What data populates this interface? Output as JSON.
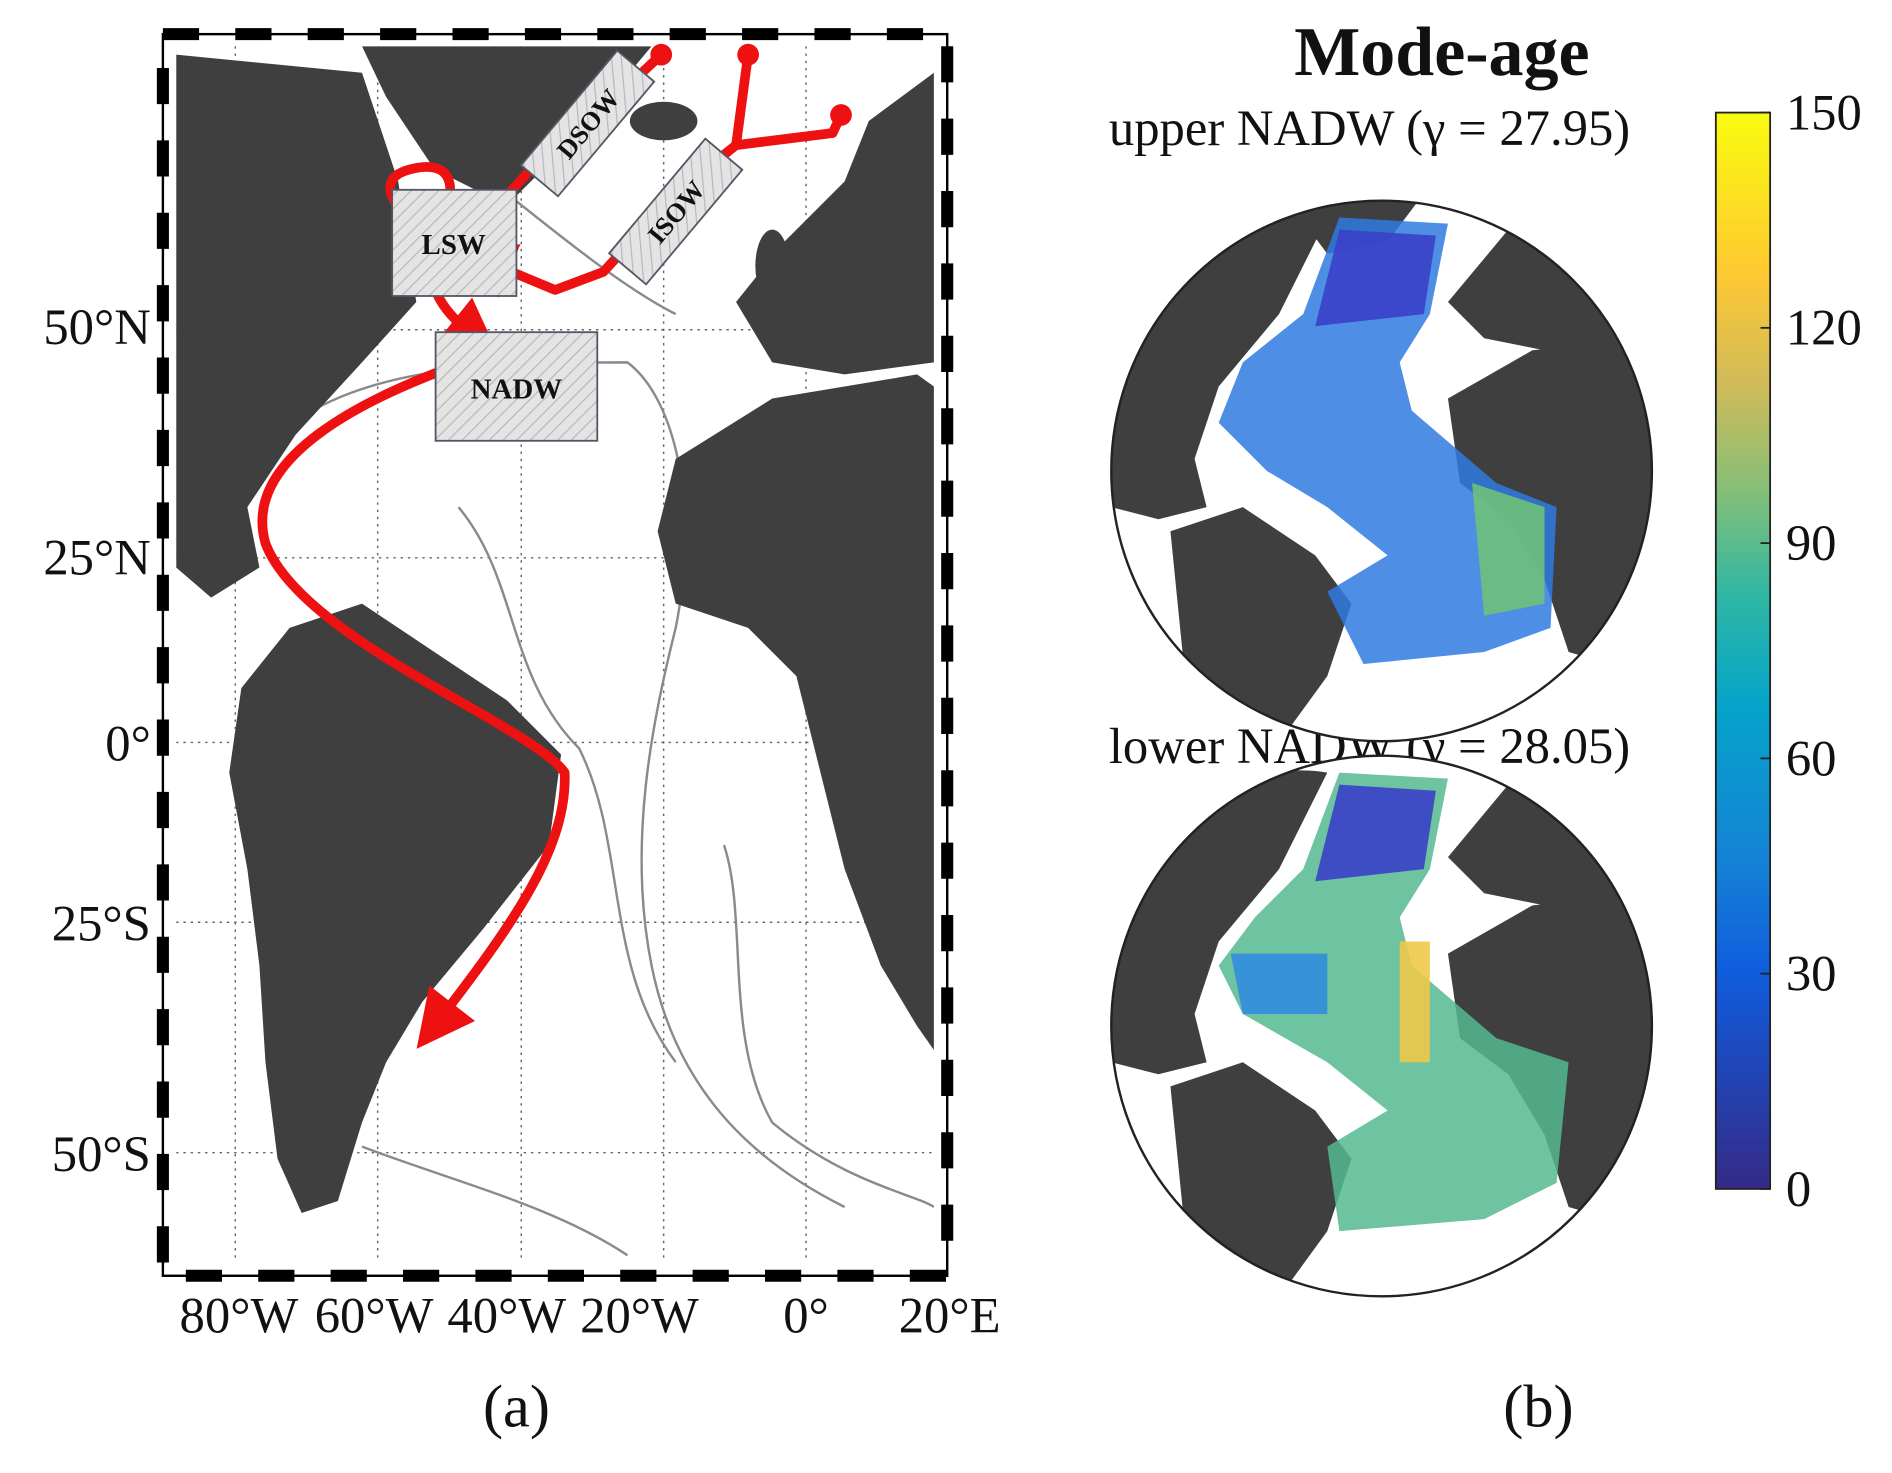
{
  "panel_a": {
    "caption": "(a)",
    "lat_labels": [
      "50°N",
      "25°N",
      "0°",
      "25°S",
      "50°S"
    ],
    "lon_labels": [
      "80°W",
      "60°W",
      "40°W",
      "20°W",
      "0°",
      "20°E"
    ],
    "water_masses": [
      "DSOW",
      "ISOW",
      "LSW",
      "NADW"
    ]
  },
  "panel_b": {
    "caption": "(b)",
    "title": "Mode-age",
    "upper_label": "upper NADW (γ = 27.95)",
    "lower_label": "lower NADW (γ = 28.05)",
    "colorbar": {
      "lim": [
        0,
        150
      ],
      "ticks": [
        0,
        30,
        60,
        90,
        120,
        150
      ]
    }
  }
}
